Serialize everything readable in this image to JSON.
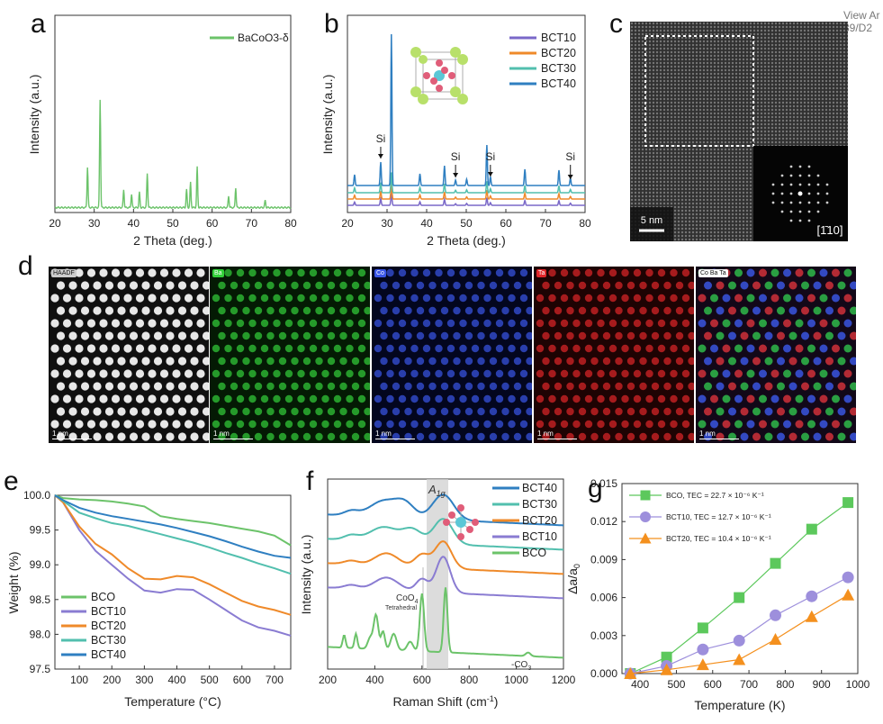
{
  "corner_text": [
    "View Ar",
    "39/D2"
  ],
  "panel_letters": [
    "a",
    "b",
    "c",
    "d",
    "e",
    "f",
    "g"
  ],
  "panel_a": {
    "legend": "BaCoO3-δ",
    "xlabel": "2 Theta (deg.)",
    "ylabel": "Intensity (a.u.)",
    "xticks": [
      "20",
      "30",
      "40",
      "50",
      "60",
      "70",
      "80"
    ]
  },
  "panel_b": {
    "legend": [
      "BCT10",
      "BCT20",
      "BCT30",
      "BCT40"
    ],
    "colors": [
      "#7a68c8",
      "#ef8a2a",
      "#52bfae",
      "#2f7fc1"
    ],
    "annotation": "Si",
    "xlabel": "2 Theta (deg.)",
    "ylabel": "Intensity (a.u.)",
    "xticks": [
      "20",
      "30",
      "40",
      "50",
      "60",
      "70",
      "80"
    ]
  },
  "panel_c": {
    "scale": "5 nm",
    "zone_axis": "[1̄10]"
  },
  "panel_d": {
    "maps": [
      {
        "label": "HAADF",
        "tint": "#ffffff",
        "bg": "#101010"
      },
      {
        "label": "Ba",
        "tint": "#33d13a",
        "bg": "#041a04"
      },
      {
        "label": "Co",
        "tint": "#3b57e8",
        "bg": "#03061e"
      },
      {
        "label": "Ta",
        "tint": "#e0262a",
        "bg": "#1e0303"
      },
      {
        "label": "Co Ba Ta",
        "tint": "#a060b0",
        "bg": "#120818"
      }
    ],
    "scale": "1 nm"
  },
  "chart_data": [
    {
      "type": "line",
      "title": "",
      "xlabel": "Temperature (°C)",
      "ylabel": "Weight (%)",
      "xlim": [
        25,
        750
      ],
      "ylim": [
        97.5,
        100.0
      ],
      "xticks": [
        100,
        200,
        300,
        400,
        500,
        600,
        700
      ],
      "yticks": [
        97.5,
        98.0,
        98.5,
        99.0,
        99.5,
        100.0
      ],
      "x": [
        25,
        50,
        100,
        150,
        200,
        250,
        300,
        350,
        400,
        450,
        500,
        550,
        600,
        650,
        700,
        750
      ],
      "series": [
        {
          "name": "BCO",
          "color": "#6cc36a",
          "values": [
            100.0,
            99.96,
            99.94,
            99.93,
            99.91,
            99.88,
            99.84,
            99.7,
            99.66,
            99.63,
            99.6,
            99.56,
            99.52,
            99.48,
            99.42,
            99.28
          ]
        },
        {
          "name": "BCT10",
          "color": "#8a7cd2",
          "values": [
            100.0,
            99.9,
            99.5,
            99.2,
            99.0,
            98.8,
            98.63,
            98.6,
            98.65,
            98.64,
            98.5,
            98.35,
            98.2,
            98.1,
            98.05,
            97.98
          ]
        },
        {
          "name": "BCT20",
          "color": "#ef8a2a",
          "values": [
            100.0,
            99.9,
            99.55,
            99.3,
            99.15,
            98.95,
            98.8,
            98.79,
            98.84,
            98.82,
            98.72,
            98.6,
            98.48,
            98.4,
            98.35,
            98.28
          ]
        },
        {
          "name": "BCT30",
          "color": "#52bfae",
          "values": [
            100.0,
            99.92,
            99.75,
            99.67,
            99.6,
            99.56,
            99.5,
            99.44,
            99.38,
            99.32,
            99.25,
            99.17,
            99.1,
            99.02,
            98.95,
            98.87
          ]
        },
        {
          "name": "BCT40",
          "color": "#2f7fc1",
          "values": [
            100.0,
            99.93,
            99.82,
            99.75,
            99.7,
            99.66,
            99.62,
            99.58,
            99.53,
            99.47,
            99.41,
            99.34,
            99.26,
            99.19,
            99.13,
            99.1
          ]
        }
      ],
      "legend_position": "bottom-left"
    },
    {
      "type": "line",
      "title": "",
      "xlabel": "Raman Shift (cm-1)",
      "ylabel": "Intensity (a.u.)",
      "xlim": [
        200,
        1200
      ],
      "xticks": [
        200,
        400,
        600,
        800,
        1000,
        1200
      ],
      "series_names": [
        "BCT40",
        "BCT30",
        "BCT20",
        "BCT10",
        "BCO"
      ],
      "colors": [
        "#2f7fc1",
        "#52bfae",
        "#ef8a2a",
        "#8a7cd2",
        "#6cc36a"
      ],
      "annotations": {
        "peak_mode": "A",
        "peak_mode_sub": "1g",
        "coo4": "CoO",
        "coo4_sub": "4",
        "tetrahedral": "Tetrahedral",
        "co3": "-CO",
        "co3_sub": "3"
      },
      "legend_position": "top-right"
    },
    {
      "type": "scatter",
      "title": "",
      "xlabel": "Temperature (K)",
      "ylabel": "Δa/a0",
      "xlim": [
        350,
        1000
      ],
      "ylim": [
        0.0,
        0.015
      ],
      "xticks": [
        400,
        500,
        600,
        700,
        800,
        900,
        1000
      ],
      "yticks": [
        "0.000",
        "0.003",
        "0.006",
        "0.009",
        "0.012",
        "0.015"
      ],
      "x": [
        373,
        473,
        573,
        673,
        773,
        873,
        973
      ],
      "series": [
        {
          "name": "BCO, TEC = 22.7 × 10⁻⁶ K⁻¹",
          "marker": "square",
          "color": "#5cc85c",
          "values": [
            0.0,
            0.0013,
            0.0036,
            0.006,
            0.0087,
            0.0114,
            0.0135
          ]
        },
        {
          "name": "BCT10, TEC = 12.7 × 10⁻⁶ K⁻¹",
          "marker": "circle",
          "color": "#9d8fdc",
          "values": [
            0.0,
            0.0006,
            0.0019,
            0.0026,
            0.0046,
            0.0061,
            0.0076
          ]
        },
        {
          "name": "BCT20, TEC = 10.4 × 10⁻⁶ K⁻¹",
          "marker": "triangle",
          "color": "#f4901e",
          "values": [
            0.0,
            0.0003,
            0.0007,
            0.0011,
            0.0027,
            0.0045,
            0.0062
          ]
        }
      ],
      "legend_position": "top-left"
    }
  ]
}
